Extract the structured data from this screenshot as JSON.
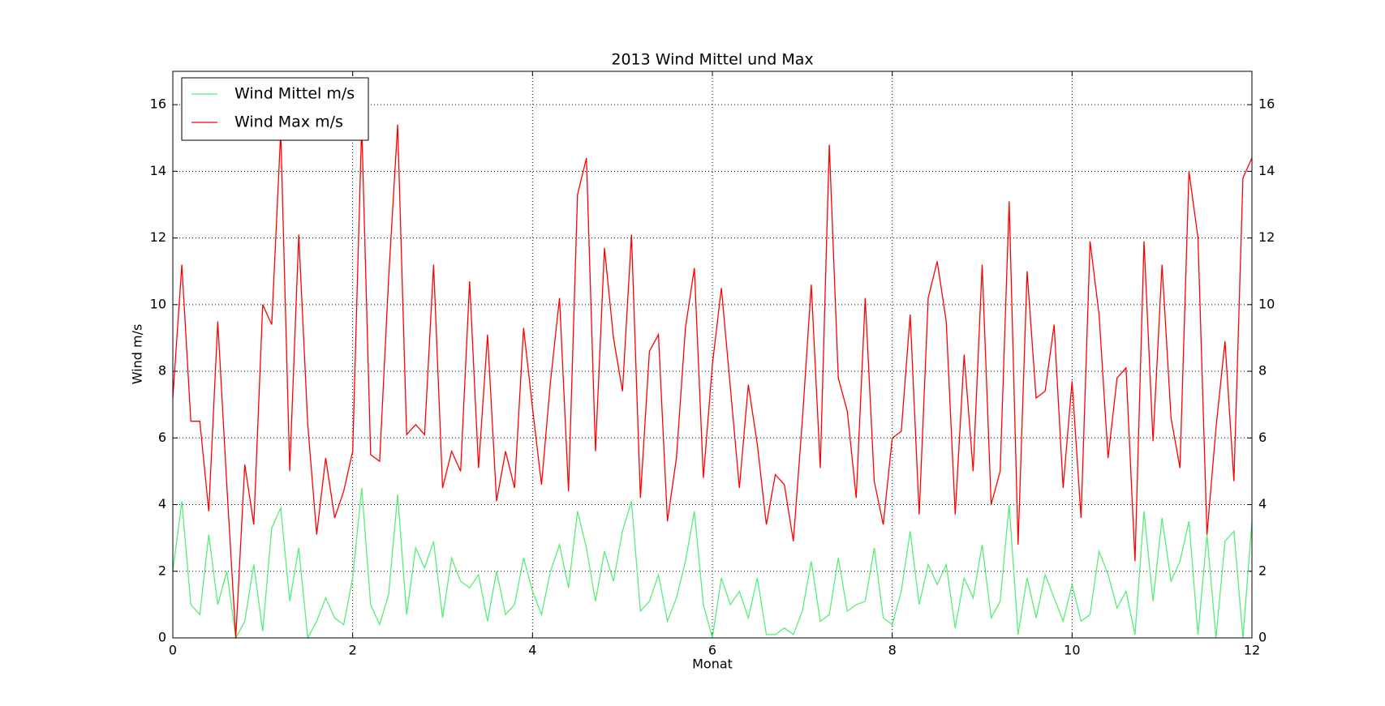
{
  "chart_data": {
    "type": "line",
    "title": "2013 Wind Mittel und Max",
    "xlabel": "Monat",
    "ylabel": "Wind m/s",
    "x": [
      0,
      0.1,
      0.2,
      0.3,
      0.4,
      0.5,
      0.6,
      0.7,
      0.8,
      0.9,
      1,
      1.1,
      1.2,
      1.3,
      1.4,
      1.5,
      1.6,
      1.7,
      1.8,
      1.9,
      2,
      2.1,
      2.2,
      2.3,
      2.4,
      2.5,
      2.6,
      2.7,
      2.8,
      2.9,
      3,
      3.1,
      3.2,
      3.3,
      3.4,
      3.5,
      3.6,
      3.7,
      3.8,
      3.9,
      4,
      4.1,
      4.2,
      4.3,
      4.4,
      4.5,
      4.6,
      4.7,
      4.8,
      4.9,
      5,
      5.1,
      5.2,
      5.3,
      5.4,
      5.5,
      5.6,
      5.7,
      5.8,
      5.9,
      6,
      6.1,
      6.2,
      6.3,
      6.4,
      6.5,
      6.6,
      6.7,
      6.8,
      6.9,
      7,
      7.1,
      7.2,
      7.3,
      7.4,
      7.5,
      7.6,
      7.7,
      7.8,
      7.9,
      8,
      8.1,
      8.2,
      8.3,
      8.4,
      8.5,
      8.6,
      8.7,
      8.8,
      8.9,
      9,
      9.1,
      9.2,
      9.3,
      9.4,
      9.5,
      9.6,
      9.7,
      9.8,
      9.9,
      10,
      10.1,
      10.2,
      10.3,
      10.4,
      10.5,
      10.6,
      10.7,
      10.8,
      10.9,
      11,
      11.1,
      11.2,
      11.3,
      11.4,
      11.5,
      11.6,
      11.7,
      11.8,
      11.9,
      12
    ],
    "series": [
      {
        "name": "Wind Mittel m/s",
        "color": "#55ee77",
        "values": [
          2.0,
          4.1,
          1.0,
          0.7,
          3.1,
          1.0,
          2.0,
          0.0,
          0.5,
          2.2,
          0.2,
          3.3,
          3.9,
          1.1,
          2.7,
          0.0,
          0.5,
          1.2,
          0.6,
          0.4,
          1.8,
          4.5,
          1.0,
          0.4,
          1.3,
          4.3,
          0.7,
          2.7,
          2.1,
          2.9,
          0.6,
          2.4,
          1.7,
          1.5,
          1.9,
          0.5,
          2.0,
          0.7,
          1.0,
          2.4,
          1.4,
          0.7,
          2.0,
          2.8,
          1.5,
          3.8,
          2.7,
          1.1,
          2.6,
          1.7,
          3.2,
          4.1,
          0.8,
          1.1,
          1.9,
          0.5,
          1.2,
          2.3,
          3.8,
          1.0,
          0.0,
          1.8,
          1.0,
          1.4,
          0.6,
          1.8,
          0.1,
          0.1,
          0.3,
          0.1,
          0.8,
          2.3,
          0.5,
          0.7,
          2.4,
          0.8,
          1.0,
          1.1,
          2.7,
          0.6,
          0.4,
          1.4,
          3.2,
          1.0,
          2.2,
          1.6,
          2.2,
          0.3,
          1.8,
          1.2,
          2.8,
          0.6,
          1.1,
          4.0,
          0.1,
          1.8,
          0.6,
          1.9,
          1.2,
          0.5,
          1.6,
          0.5,
          0.7,
          2.6,
          1.9,
          0.9,
          1.4,
          0.1,
          3.8,
          1.1,
          3.6,
          1.7,
          2.3,
          3.5,
          0.1,
          3.1,
          0.0,
          2.9,
          3.2,
          0.0,
          3.5
        ]
      },
      {
        "name": "Wind Max m/s",
        "color": "#ff0000",
        "values": [
          7.2,
          11.2,
          6.5,
          6.5,
          3.8,
          9.5,
          4.6,
          0.0,
          5.2,
          3.4,
          10.0,
          9.4,
          15.2,
          5.0,
          12.1,
          6.4,
          3.1,
          5.4,
          3.6,
          4.4,
          5.6,
          15.4,
          5.5,
          5.3,
          10.8,
          15.4,
          6.1,
          6.4,
          6.1,
          11.2,
          4.5,
          5.6,
          5.0,
          10.7,
          5.1,
          9.1,
          4.1,
          5.6,
          4.5,
          9.3,
          6.9,
          4.6,
          7.7,
          10.2,
          4.4,
          13.3,
          14.4,
          5.6,
          11.7,
          9.0,
          7.4,
          12.1,
          4.2,
          8.6,
          9.1,
          3.5,
          5.4,
          9.3,
          11.1,
          4.8,
          8.2,
          10.5,
          7.5,
          4.5,
          7.6,
          5.8,
          3.4,
          4.9,
          4.6,
          2.9,
          6.5,
          10.6,
          5.1,
          14.8,
          7.8,
          6.8,
          4.2,
          10.2,
          4.7,
          3.4,
          6.0,
          6.2,
          9.7,
          3.7,
          10.2,
          11.3,
          9.5,
          3.7,
          8.5,
          5.0,
          11.2,
          4.0,
          5.0,
          13.1,
          2.8,
          11.0,
          7.2,
          7.4,
          9.4,
          4.5,
          7.7,
          3.6,
          11.9,
          9.7,
          5.4,
          7.8,
          8.1,
          2.3,
          11.9,
          5.9,
          11.2,
          6.6,
          5.1,
          14.0,
          12.0,
          3.1,
          6.3,
          8.9,
          4.7,
          13.8,
          14.4
        ]
      }
    ],
    "xlim": [
      0,
      12
    ],
    "xticks": [
      0,
      2,
      4,
      6,
      8,
      10,
      12
    ],
    "ylim": [
      0,
      17
    ],
    "yticks": [
      0,
      2,
      4,
      6,
      8,
      10,
      12,
      14,
      16
    ],
    "grid": true,
    "legend": "upper left"
  }
}
